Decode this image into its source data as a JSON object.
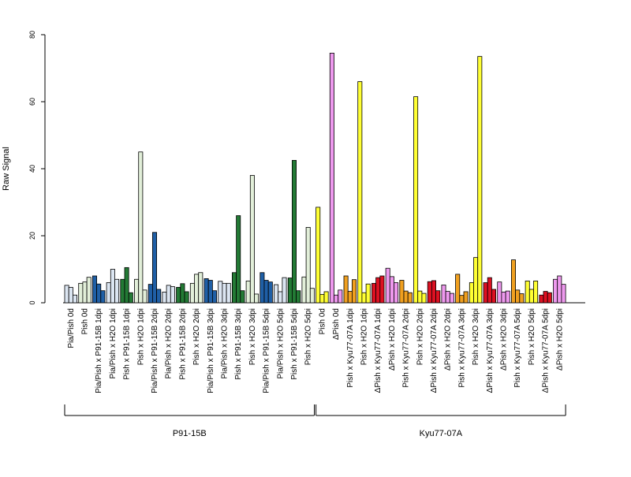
{
  "chart_data": {
    "type": "bar",
    "title": "",
    "ylabel": "Raw Signal",
    "ylim": [
      0,
      80
    ],
    "yticks": [
      0,
      20,
      40,
      60,
      80
    ],
    "bars_per_group": 3,
    "categories": [
      "Pia/Pish 0d",
      "Pish 0d",
      "Pia/Pish x P91-15B 1dpi",
      "Pia/Pish x H2O 1dpi",
      "Pish x P91-15B 1dpi",
      "Pish x H2O 1dpi",
      "Pia/Pish x P91-15B 2dpi",
      "Pia/Pish x H2O 2dpi",
      "Pish x P91-15B 2dpi",
      "Pish x H2O 2dpi",
      "Pia/Pish x P91-15B 3dpi",
      "Pia/Pish x H2O 3dpi",
      "Pish x P91-15B 3dpi",
      "Pish x H2O 3dpi",
      "Pia/Pish x P91-15B 5dpi",
      "Pia/Pish x H2O 5dpi",
      "Pish x P91-15B 5dpi",
      "Pish x H2O 5dpi",
      "Pish 0d",
      "ΔPish 0d",
      "Pish x Kyu77-07A 1dpi",
      "Pish x H2O 1dpi",
      "ΔPish x Kyu77-07A 1dpi",
      "ΔPish x H2O 1dpi",
      "Pish x Kyu77-07A 2dpi",
      "Pish x H2O 2dpi",
      "ΔPish x Kyu77-07A 2dpi",
      "ΔPish x H2O 2dpi",
      "Pish x Kyu77-07A 3dpi",
      "Pish x H2O 3dpi",
      "ΔPish x Kyu77-07A 3dpi",
      "ΔPish x H2O 3dpi",
      "Pish x Kyu77-07A 5dpi",
      "Pish x H2O 5dpi",
      "ΔPish x Kyu77-07A 5dpi",
      "ΔPish x H2O 5dpi"
    ],
    "group_colors": [
      "#dce6f2",
      "#e2efd9",
      "#1f5fa6",
      "#dce6f2",
      "#237a35",
      "#e2efd9",
      "#1f5fa6",
      "#dce6f2",
      "#237a35",
      "#e2efd9",
      "#1f5fa6",
      "#dce6f2",
      "#237a35",
      "#e2efd9",
      "#1f5fa6",
      "#dce6f2",
      "#237a35",
      "#e2efd9",
      "#ffff33",
      "#ee99ee",
      "#f0a020",
      "#ffff33",
      "#dd1122",
      "#ee99ee",
      "#f0a020",
      "#ffff33",
      "#dd1122",
      "#ee99ee",
      "#f0a020",
      "#ffff33",
      "#dd1122",
      "#ee99ee",
      "#f0a020",
      "#ffff33",
      "#dd1122",
      "#ee99ee"
    ],
    "values": [
      [
        5.2,
        4.6,
        2.3
      ],
      [
        5.8,
        6.2,
        7.6
      ],
      [
        8.0,
        5.6,
        3.6
      ],
      [
        6.0,
        10.0,
        7.0
      ],
      [
        7.0,
        10.5,
        3.0
      ],
      [
        7.0,
        45.0,
        3.8
      ],
      [
        5.5,
        21.0,
        4.0
      ],
      [
        3.2,
        5.2,
        4.8
      ],
      [
        4.6,
        5.7,
        3.3
      ],
      [
        5.8,
        8.5,
        9.0
      ],
      [
        7.2,
        6.7,
        3.6
      ],
      [
        6.4,
        5.8,
        5.8
      ],
      [
        9.0,
        26.0,
        3.6
      ],
      [
        6.5,
        38.0,
        2.6
      ],
      [
        9.0,
        6.7,
        6.2
      ],
      [
        5.4,
        3.3,
        7.5
      ],
      [
        7.4,
        42.5,
        3.6
      ],
      [
        7.7,
        22.5,
        4.3
      ],
      [
        28.5,
        2.5,
        3.3
      ],
      [
        74.5,
        2.3,
        3.8
      ],
      [
        8.0,
        3.4,
        6.9
      ],
      [
        66.0,
        3.0,
        5.6
      ],
      [
        5.8,
        7.5,
        8.0
      ],
      [
        10.3,
        7.8,
        6.0
      ],
      [
        6.7,
        3.5,
        3.0
      ],
      [
        61.5,
        3.5,
        2.8
      ],
      [
        6.3,
        6.6,
        3.6
      ],
      [
        5.3,
        3.4,
        2.8
      ],
      [
        8.5,
        2.2,
        3.3
      ],
      [
        6.0,
        13.5,
        73.5
      ],
      [
        6.0,
        7.5,
        4.0
      ],
      [
        6.2,
        3.2,
        3.5
      ],
      [
        12.8,
        3.8,
        2.7
      ],
      [
        6.5,
        4.0,
        6.5
      ],
      [
        2.3,
        3.4,
        3.0
      ],
      [
        7.0,
        8.0,
        5.5
      ]
    ],
    "top_groups": [
      {
        "label": "P91-15B",
        "from": 0,
        "to": 17
      },
      {
        "label": "Kyu77-07A",
        "from": 18,
        "to": 35
      }
    ]
  }
}
